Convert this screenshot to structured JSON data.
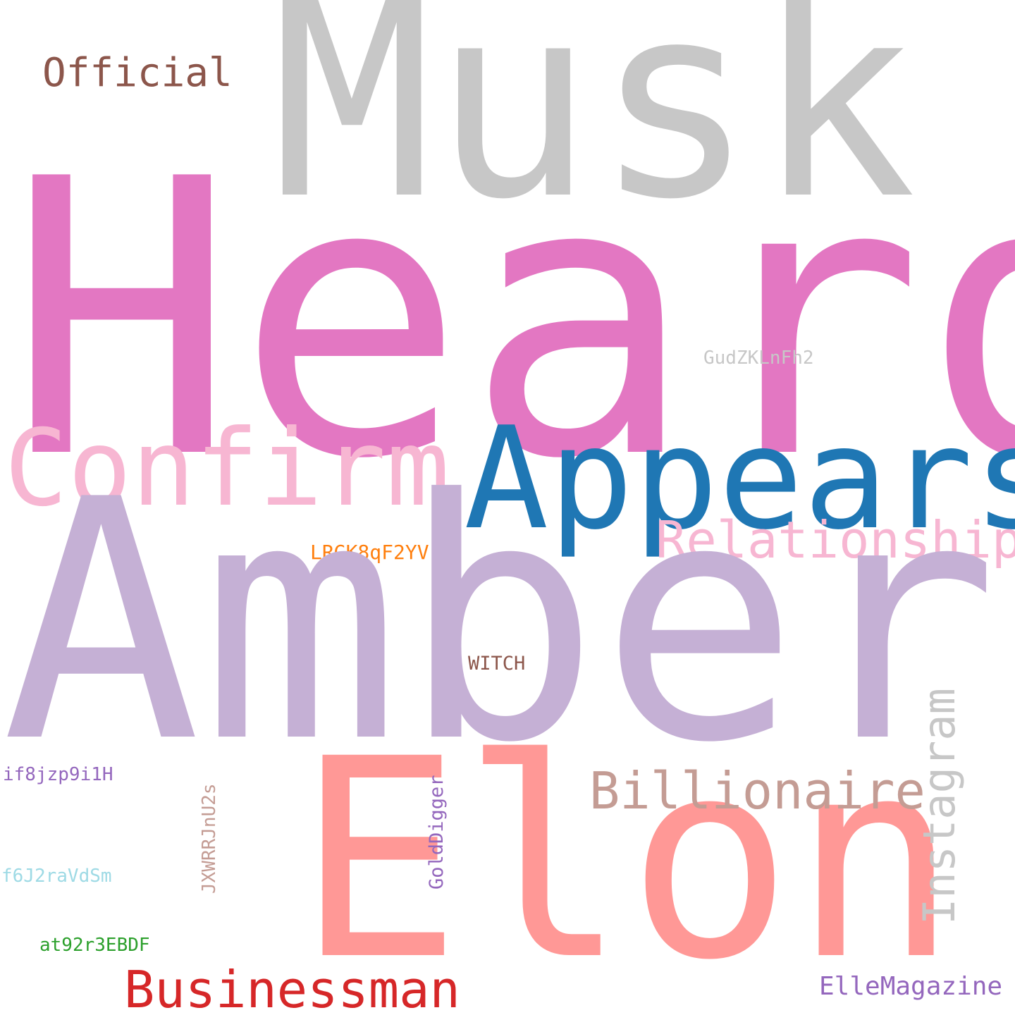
{
  "words": {
    "musk": {
      "text": "Musk",
      "color": "#c7c7c7"
    },
    "heard": {
      "text": "Heard",
      "color": "#e377c2"
    },
    "official": {
      "text": "Official",
      "color": "#8c564b"
    },
    "gudzklnfh2": {
      "text": "GudZKLnFh2",
      "color": "#c7c7c7"
    },
    "confirm": {
      "text": "Confirm",
      "color": "#f7b6d2"
    },
    "appears": {
      "text": "Appears",
      "color": "#1f77b4"
    },
    "relationship": {
      "text": "Relationship",
      "color": "#f7b6d2"
    },
    "lrgk8qf2yv": {
      "text": "LRGK8qF2YV",
      "color": "#ff7f0e"
    },
    "amber": {
      "text": "Amber",
      "color": "#c5b0d5"
    },
    "witch": {
      "text": "WITCH",
      "color": "#8c564b"
    },
    "elon": {
      "text": "Elon",
      "color": "#ff9896"
    },
    "billionaire": {
      "text": "Billionaire",
      "color": "#c49c94"
    },
    "instagram": {
      "text": "Instagram",
      "color": "#c7c7c7"
    },
    "if8jzp9i1h": {
      "text": "if8jzp9i1H",
      "color": "#9467bd"
    },
    "jxwrrjnu2s": {
      "text": "JXWRRJnU2s",
      "color": "#c49c94"
    },
    "golddigger": {
      "text": "GoldDigger",
      "color": "#9467bd"
    },
    "f6j2ravdsm": {
      "text": "f6J2raVdSm",
      "color": "#9edae5"
    },
    "at92r3ebdf": {
      "text": "at92r3EBDF",
      "color": "#2ca02c"
    },
    "businessman": {
      "text": "Businessman",
      "color": "#d62728"
    },
    "ellemagazine": {
      "text": "ElleMagazine",
      "color": "#9467bd"
    }
  }
}
